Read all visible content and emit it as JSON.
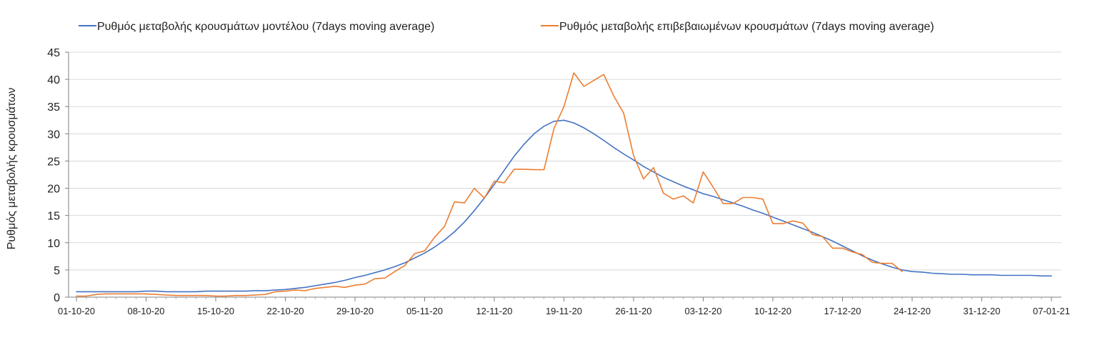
{
  "chart_data": {
    "type": "line",
    "title": "",
    "xlabel": "",
    "ylabel": "Ρυθμός μεταβολής κρουσμάτων",
    "ylim": [
      0,
      45
    ],
    "yticks": [
      0,
      5,
      10,
      15,
      20,
      25,
      30,
      35,
      40,
      45
    ],
    "grid": true,
    "legend_position": "top",
    "x_range_days": [
      0,
      98
    ],
    "x_tick_labels": [
      {
        "day": 0,
        "label": "01-10-20"
      },
      {
        "day": 7,
        "label": "08-10-20"
      },
      {
        "day": 14,
        "label": "15-10-20"
      },
      {
        "day": 21,
        "label": "22-10-20"
      },
      {
        "day": 28,
        "label": "29-10-20"
      },
      {
        "day": 35,
        "label": "05-11-20"
      },
      {
        "day": 42,
        "label": "12-11-20"
      },
      {
        "day": 49,
        "label": "19-11-20"
      },
      {
        "day": 56,
        "label": "26-11-20"
      },
      {
        "day": 63,
        "label": "03-12-20"
      },
      {
        "day": 70,
        "label": "10-12-20"
      },
      {
        "day": 77,
        "label": "17-12-20"
      },
      {
        "day": 84,
        "label": "24-12-20"
      },
      {
        "day": 91,
        "label": "31-12-20"
      },
      {
        "day": 98,
        "label": "07-01-21"
      }
    ],
    "series": [
      {
        "name": "Ρυθμός μεταβολής κρουσμάτων μοντέλου (7days moving average)",
        "color": "#4472c4",
        "x": [
          0,
          1,
          2,
          3,
          4,
          5,
          6,
          7,
          8,
          9,
          10,
          11,
          12,
          13,
          14,
          15,
          16,
          17,
          18,
          19,
          20,
          21,
          22,
          23,
          24,
          25,
          26,
          27,
          28,
          29,
          30,
          31,
          32,
          33,
          34,
          35,
          36,
          37,
          38,
          39,
          40,
          41,
          42,
          43,
          44,
          45,
          46,
          47,
          48,
          49,
          50,
          51,
          52,
          53,
          54,
          55,
          56,
          57,
          58,
          59,
          60,
          61,
          62,
          63,
          64,
          65,
          66,
          67,
          68,
          69,
          70,
          71,
          72,
          73,
          74,
          75,
          76,
          77,
          78,
          79,
          80,
          81,
          82,
          83,
          84,
          85,
          86,
          87,
          88,
          89,
          90,
          91,
          92,
          93,
          94,
          95,
          96,
          97,
          98
        ],
        "values": [
          1.0,
          1.0,
          1.0,
          1.0,
          1.0,
          1.0,
          1.0,
          1.1,
          1.1,
          1.0,
          1.0,
          1.0,
          1.0,
          1.1,
          1.1,
          1.1,
          1.1,
          1.1,
          1.2,
          1.2,
          1.3,
          1.4,
          1.6,
          1.8,
          2.1,
          2.4,
          2.7,
          3.1,
          3.6,
          4.0,
          4.5,
          5.0,
          5.6,
          6.3,
          7.2,
          8.1,
          9.2,
          10.5,
          12.0,
          13.8,
          15.9,
          18.2,
          20.7,
          23.3,
          25.9,
          28.1,
          30.0,
          31.4,
          32.3,
          32.5,
          32.0,
          31.1,
          30.0,
          28.8,
          27.5,
          26.3,
          25.2,
          24.0,
          23.0,
          22.0,
          21.2,
          20.4,
          19.7,
          19.0,
          18.5,
          17.9,
          17.3,
          16.7,
          16.0,
          15.4,
          14.7,
          14.0,
          13.3,
          12.6,
          11.9,
          11.1,
          10.3,
          9.4,
          8.5,
          7.6,
          6.8,
          6.1,
          5.5,
          5.0,
          4.7,
          4.6,
          4.4,
          4.3,
          4.2,
          4.2,
          4.1,
          4.1,
          4.1,
          4.0,
          4.0,
          4.0,
          4.0,
          3.9,
          3.9
        ]
      },
      {
        "name": "Ρυθμός μεταβολής επιβεβαιωμένων κρουσμάτων (7days moving average)",
        "color": "#ed7d31",
        "x": [
          0,
          1,
          2,
          3,
          4,
          5,
          6,
          7,
          8,
          9,
          10,
          11,
          12,
          13,
          14,
          15,
          16,
          17,
          18,
          19,
          20,
          21,
          22,
          23,
          24,
          25,
          26,
          27,
          28,
          29,
          30,
          31,
          32,
          33,
          34,
          35,
          36,
          37,
          38,
          39,
          40,
          41,
          42,
          43,
          44,
          45,
          46,
          47,
          48,
          49,
          50,
          51,
          52,
          53,
          54,
          55,
          56,
          57,
          58,
          59,
          60,
          61,
          62,
          63,
          64,
          65,
          66,
          67,
          68,
          69,
          70,
          71,
          72,
          73,
          74,
          75,
          76,
          77,
          78,
          79,
          80,
          81,
          82,
          83
        ],
        "values": [
          0.2,
          0.2,
          0.5,
          0.6,
          0.6,
          0.6,
          0.6,
          0.6,
          0.5,
          0.4,
          0.3,
          0.3,
          0.3,
          0.3,
          0.2,
          0.2,
          0.3,
          0.3,
          0.4,
          0.5,
          1.0,
          1.1,
          1.3,
          1.2,
          1.6,
          1.8,
          2.0,
          1.8,
          2.2,
          2.4,
          3.4,
          3.5,
          4.7,
          5.8,
          8.0,
          8.5,
          11.0,
          13.0,
          17.5,
          17.3,
          20.0,
          18.2,
          21.3,
          21.0,
          23.5,
          23.5,
          23.4,
          23.4,
          31.0,
          35.0,
          41.2,
          38.7,
          39.8,
          40.9,
          37.0,
          33.8,
          26.0,
          21.7,
          23.8,
          19.1,
          18.0,
          18.6,
          17.3,
          23.0,
          20.2,
          17.2,
          17.2,
          18.3,
          18.3,
          18.0,
          13.5,
          13.5,
          14.0,
          13.6,
          11.5,
          11.1,
          9.0,
          9.0,
          8.3,
          7.8,
          6.4,
          6.2,
          6.2,
          4.7
        ]
      }
    ]
  }
}
